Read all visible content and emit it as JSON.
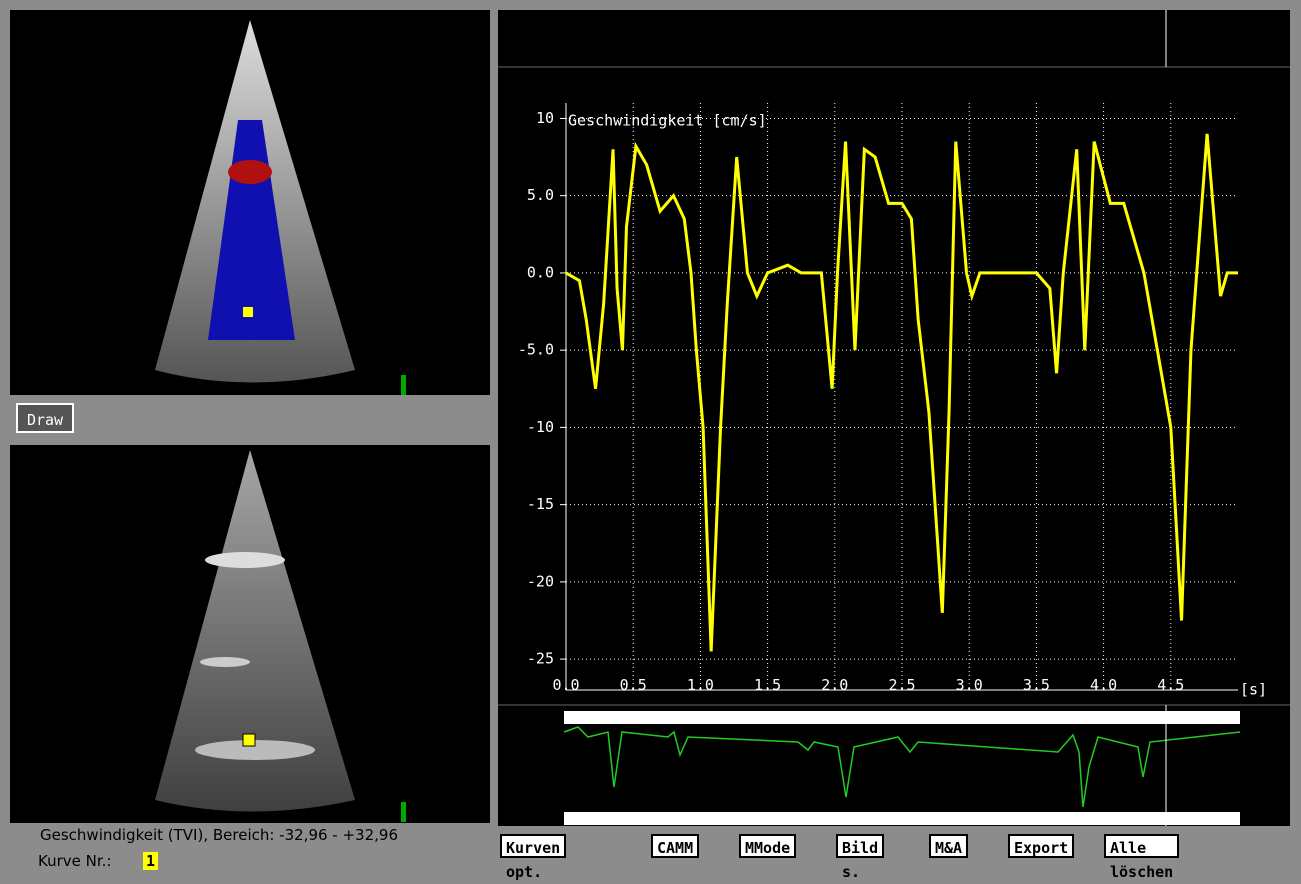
{
  "chart_data": {
    "type": "line",
    "title": "Geschwindigkeit [cm/s]",
    "x_label": "[s]",
    "x": [
      0,
      0.1,
      0.15,
      0.22,
      0.28,
      0.35,
      0.38,
      0.42,
      0.45,
      0.52,
      0.6,
      0.7,
      0.8,
      0.88,
      0.93,
      0.97,
      1.02,
      1.08,
      1.15,
      1.2,
      1.27,
      1.35,
      1.42,
      1.5,
      1.65,
      1.75,
      1.9,
      1.98,
      2.02,
      2.08,
      2.15,
      2.22,
      2.3,
      2.4,
      2.5,
      2.57,
      2.62,
      2.7,
      2.8,
      2.85,
      2.9,
      2.98,
      3.02,
      3.08,
      3.5,
      3.6,
      3.65,
      3.7,
      3.8,
      3.86,
      3.93,
      4.05,
      4.15,
      4.3,
      4.4,
      4.5,
      4.58,
      4.65,
      4.77,
      4.87,
      4.92,
      5.0
    ],
    "values": [
      0,
      -0.5,
      -3,
      -7.5,
      -2,
      8,
      -1,
      -5,
      3,
      8.2,
      7,
      4,
      5,
      3.5,
      0,
      -5,
      -10,
      -24.5,
      -10,
      -2,
      7.5,
      0,
      -1.5,
      0,
      0.5,
      0,
      0,
      -7.5,
      0,
      8.5,
      -5,
      8,
      7.5,
      4.5,
      4.5,
      3.5,
      -3,
      -9,
      -22,
      -9,
      8.5,
      0,
      -1.5,
      0,
      0,
      -1,
      -6.5,
      0,
      8,
      -5,
      8.5,
      4.5,
      4.5,
      0,
      -5,
      -10,
      -22.5,
      -5,
      9,
      -1.5,
      0,
      0
    ],
    "color": "#ffff00",
    "xlim": [
      0,
      5.0
    ],
    "xticks": [
      {
        "value": 0,
        "label": "0.0"
      },
      0.5,
      {
        "value": 1,
        "label": "1.0"
      },
      1.5,
      {
        "value": 2,
        "label": "2.0"
      },
      2.5,
      {
        "value": 3,
        "label": "3.0"
      },
      3.5,
      {
        "value": 4,
        "label": "4.0"
      },
      4.5
    ],
    "ylim": [
      -27,
      11
    ],
    "yticks": [
      10,
      {
        "value": 5,
        "label": "5.0"
      },
      {
        "value": 0,
        "label": "0.0"
      },
      {
        "value": -5,
        "label": "-5.0"
      },
      -10,
      -15,
      -20,
      -25
    ],
    "grid": true
  },
  "ui": {
    "draw_button": "Draw",
    "status": "Geschwindigkeit (TVI), Bereich: -32,96 -  +32,96",
    "curve_label": "Kurve Nr.:",
    "curve_number": "1",
    "buttons": [
      "Kurven opt.",
      "CAMM",
      "MMode",
      "Bild s.",
      "M&A",
      "Export",
      "Alle löschen"
    ]
  }
}
